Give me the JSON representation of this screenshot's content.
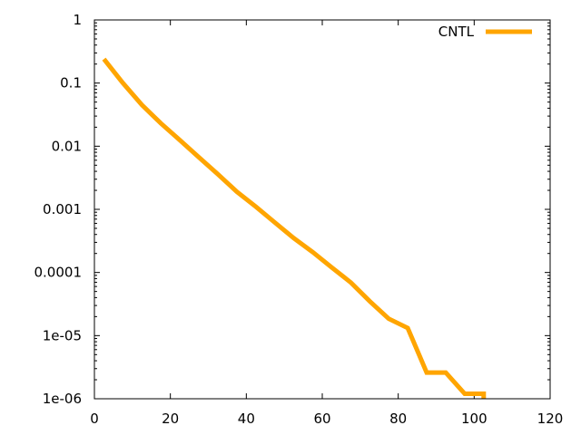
{
  "chart_data": {
    "type": "line",
    "title": "",
    "xlabel": "",
    "ylabel": "",
    "xlim": [
      0,
      120
    ],
    "ylim": [
      1e-06,
      1
    ],
    "yscale": "log",
    "grid": false,
    "legend_position": "top-right",
    "x_ticks": [
      {
        "value": 0,
        "label": "0"
      },
      {
        "value": 20,
        "label": "20"
      },
      {
        "value": 40,
        "label": "40"
      },
      {
        "value": 60,
        "label": "60"
      },
      {
        "value": 80,
        "label": "80"
      },
      {
        "value": 100,
        "label": "100"
      },
      {
        "value": 120,
        "label": "120"
      }
    ],
    "y_ticks": [
      {
        "value": 1,
        "label": "1"
      },
      {
        "value": 0.1,
        "label": "0.1"
      },
      {
        "value": 0.01,
        "label": "0.01"
      },
      {
        "value": 0.001,
        "label": "0.001"
      },
      {
        "value": 0.0001,
        "label": "0.0001"
      },
      {
        "value": 1e-05,
        "label": "1e-05"
      },
      {
        "value": 1e-06,
        "label": "1e-06"
      }
    ],
    "series": [
      {
        "name": "CNTL",
        "color": "#ffa500",
        "x": [
          2.5,
          7.5,
          12.5,
          17.5,
          22.5,
          27.5,
          32.5,
          37.5,
          42.5,
          47.5,
          52.5,
          57.5,
          62.5,
          67.5,
          72.5,
          77.5,
          82.5,
          87.5,
          92.5,
          97.5,
          102.5
        ],
        "y": [
          0.24,
          0.1,
          0.045,
          0.023,
          0.0125,
          0.0067,
          0.0036,
          0.0019,
          0.0011,
          0.00062,
          0.00035,
          0.00021,
          0.00012,
          6.95e-05,
          3.5e-05,
          1.85e-05,
          1.32e-05,
          2.6e-06,
          2.6e-06,
          1.2e-06,
          1.2e-06
        ]
      }
    ]
  }
}
